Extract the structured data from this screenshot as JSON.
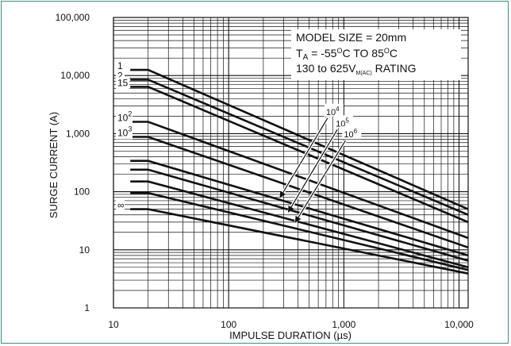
{
  "colors": {
    "frame": "#3b8f83",
    "line": "#111111",
    "grid": "#111111",
    "background": "#ffffff"
  },
  "chart_data": {
    "type": "line",
    "title": "",
    "xlabel": "IMPULSE DURATION (µs)",
    "ylabel": "SURGE CURRENT (A)",
    "x_scale": "log",
    "y_scale": "log",
    "xlim": [
      10,
      12000
    ],
    "ylim": [
      1,
      100000
    ],
    "x_ticks": [
      {
        "value": 10,
        "label": "10"
      },
      {
        "value": 100,
        "label": "100"
      },
      {
        "value": 1000,
        "label": "1,000"
      },
      {
        "value": 10000,
        "label": "10,000"
      }
    ],
    "y_ticks": [
      {
        "value": 1,
        "label": "1"
      },
      {
        "value": 10,
        "label": "10"
      },
      {
        "value": 100,
        "label": "100"
      },
      {
        "value": 1000,
        "label": "1,000"
      },
      {
        "value": 10000,
        "label": "10,000"
      },
      {
        "value": 100000,
        "label": "100,000"
      }
    ],
    "grid": true,
    "info_box": {
      "line1": "MODEL SIZE = 20mm",
      "line2_main": "T",
      "line2_sub": "A",
      "line2_rest1": " = -55",
      "line2_sup1": "O",
      "line2_rest2": "C TO 85",
      "line2_sup2": "O",
      "line2_rest3": "C",
      "line3_main": "130 to 625V",
      "line3_sub": "M(AC)",
      "line3_rest": " RATING"
    },
    "series": [
      {
        "name": "1",
        "label_base": "1",
        "label_exp": "",
        "points": [
          [
            14,
            12500
          ],
          [
            20,
            12500
          ],
          [
            12000,
            50
          ]
        ]
      },
      {
        "name": "2",
        "label_base": "2",
        "label_exp": "",
        "points": [
          [
            14,
            8500
          ],
          [
            20,
            8500
          ],
          [
            12000,
            40
          ]
        ]
      },
      {
        "name": "15",
        "label_base": "15",
        "label_exp": "",
        "points": [
          [
            14,
            6400
          ],
          [
            20,
            6400
          ],
          [
            12000,
            30
          ]
        ]
      },
      {
        "name": "10^2",
        "label_base": "10",
        "label_exp": "2",
        "points": [
          [
            14,
            1600
          ],
          [
            20,
            1600
          ],
          [
            12000,
            16
          ]
        ]
      },
      {
        "name": "10^3",
        "label_base": "10",
        "label_exp": "3",
        "points": [
          [
            14,
            880
          ],
          [
            20,
            880
          ],
          [
            12000,
            11
          ]
        ]
      },
      {
        "name": "",
        "label_base": "",
        "label_exp": "",
        "points": [
          [
            14,
            340
          ],
          [
            20,
            340
          ],
          [
            12000,
            8
          ]
        ]
      },
      {
        "name": "",
        "label_base": "",
        "label_exp": "",
        "points": [
          [
            14,
            240
          ],
          [
            20,
            240
          ],
          [
            12000,
            6.5
          ]
        ]
      },
      {
        "name": "",
        "label_base": "",
        "label_exp": "",
        "points": [
          [
            14,
            150
          ],
          [
            20,
            150
          ],
          [
            12000,
            5
          ]
        ]
      },
      {
        "name": "",
        "label_base": "",
        "label_exp": "",
        "points": [
          [
            14,
            95
          ],
          [
            20,
            95
          ],
          [
            12000,
            4.5
          ]
        ]
      },
      {
        "name": "∞",
        "label_base": "∞",
        "label_exp": "",
        "points": [
          [
            14,
            50
          ],
          [
            20,
            50
          ],
          [
            12000,
            3.9
          ]
        ]
      }
    ],
    "annotations": [
      {
        "base": "10",
        "exp": "4",
        "label_at": [
          700,
          2100
        ],
        "arrow_to": [
          280,
          80
        ]
      },
      {
        "base": "10",
        "exp": "5",
        "label_at": [
          850,
          1330
        ],
        "arrow_to": [
          330,
          45
        ]
      },
      {
        "base": "10",
        "exp": "6",
        "label_at": [
          1000,
          860
        ],
        "arrow_to": [
          380,
          30
        ]
      }
    ]
  }
}
